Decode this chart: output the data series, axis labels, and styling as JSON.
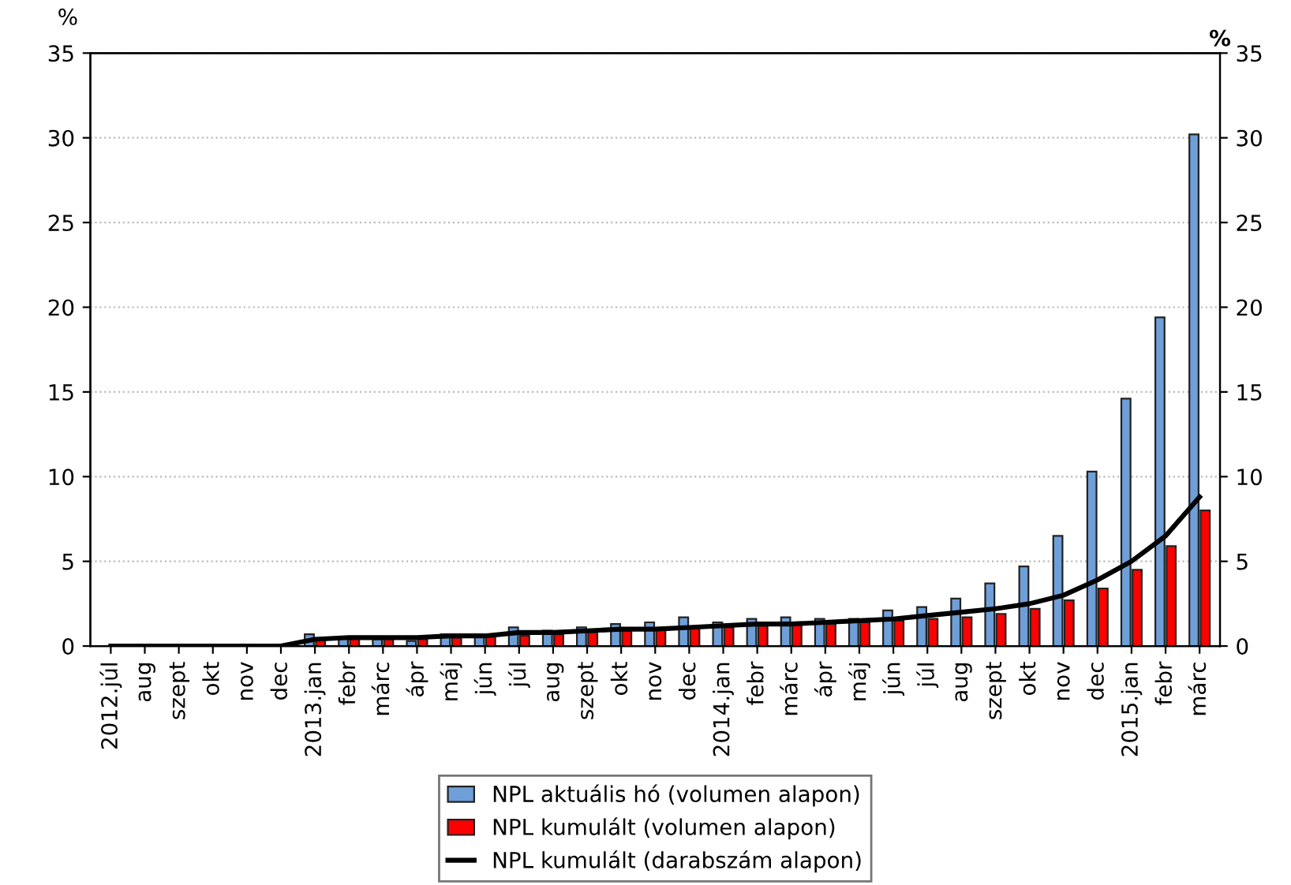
{
  "chart_data": {
    "type": "bar",
    "ylabel": "%",
    "y2label": "%",
    "categories": [
      "2012.júl",
      "aug",
      "szept",
      "okt",
      "nov",
      "dec",
      "2013.jan",
      "febr",
      "márc",
      "ápr",
      "máj",
      "jún",
      "júl",
      "aug",
      "szept",
      "okt",
      "nov",
      "dec",
      "2014.jan",
      "febr",
      "márc",
      "ápr",
      "máj",
      "jún",
      "júl",
      "aug",
      "szept",
      "okt",
      "nov",
      "dec",
      "2015.jan",
      "febr",
      "márc"
    ],
    "series": [
      {
        "name": "NPL aktuális hó (volumen alapon)",
        "color": "#6f9fd8",
        "values": [
          null,
          null,
          null,
          null,
          null,
          null,
          0.7,
          0.5,
          0.4,
          0.3,
          0.7,
          0.7,
          1.1,
          0.9,
          1.1,
          1.3,
          1.4,
          1.7,
          1.4,
          1.6,
          1.7,
          1.6,
          1.6,
          2.1,
          2.3,
          2.8,
          3.7,
          4.7,
          6.5,
          10.3,
          14.6,
          19.4,
          30.2
        ]
      },
      {
        "name": "NPL kumulált (volumen alapon)",
        "color": "#ff0000",
        "values": [
          null,
          null,
          null,
          null,
          null,
          null,
          0.4,
          0.5,
          0.4,
          0.4,
          0.5,
          0.6,
          0.6,
          0.7,
          0.8,
          0.9,
          1.0,
          1.1,
          1.1,
          1.2,
          1.3,
          1.3,
          1.4,
          1.5,
          1.6,
          1.7,
          1.9,
          2.2,
          2.7,
          3.4,
          4.5,
          5.9,
          8.0
        ]
      },
      {
        "name": "NPL kumulált (darabszám alapon)",
        "type": "line",
        "color": "#000000",
        "values": [
          0,
          0,
          0,
          0,
          0,
          0,
          0.4,
          0.5,
          0.5,
          0.5,
          0.6,
          0.6,
          0.8,
          0.8,
          0.9,
          1.0,
          1.0,
          1.1,
          1.2,
          1.3,
          1.3,
          1.4,
          1.5,
          1.6,
          1.8,
          2.0,
          2.2,
          2.5,
          3.0,
          3.9,
          5.0,
          6.5,
          8.8
        ]
      }
    ],
    "ylim": [
      0,
      35
    ],
    "yticks": [
      0,
      5,
      10,
      15,
      20,
      25,
      30,
      35
    ],
    "y2lim": [
      0,
      35
    ],
    "y2ticks": [
      0,
      5,
      10,
      15,
      20,
      25,
      30,
      35
    ],
    "grid": "y",
    "legend": "bottom",
    "marker": "none",
    "line_style": "solid"
  }
}
